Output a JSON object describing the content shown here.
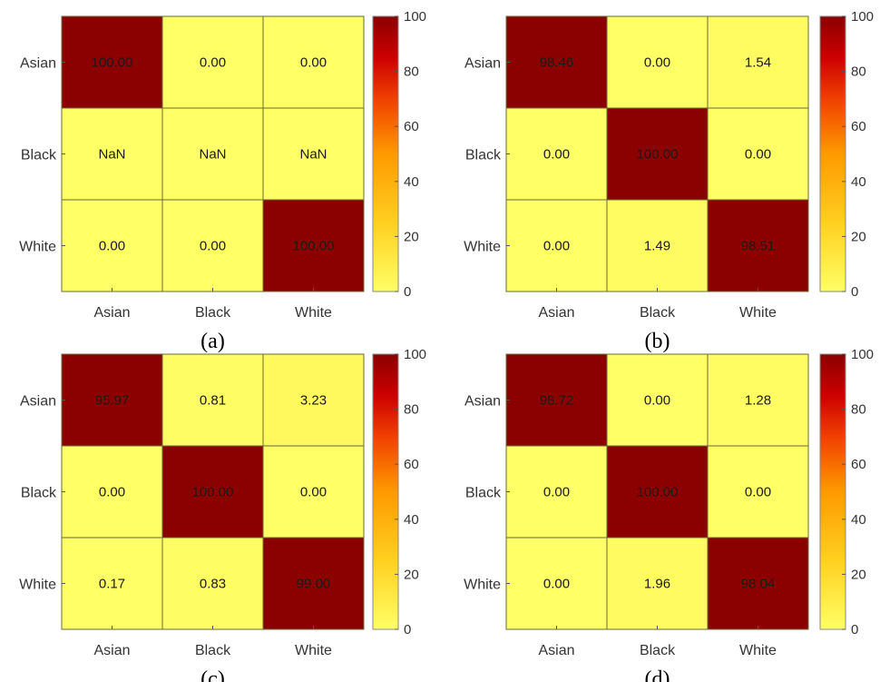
{
  "chart_data": [
    {
      "type": "heatmap",
      "panel_label": "(a)",
      "x_categories": [
        "Asian",
        "Black",
        "White"
      ],
      "y_categories": [
        "Asian",
        "Black",
        "White"
      ],
      "values": [
        [
          100.0,
          0.0,
          0.0
        ],
        [
          null,
          null,
          null
        ],
        [
          0.0,
          0.0,
          100.0
        ]
      ],
      "cell_labels": [
        [
          "100.00",
          "0.00",
          "0.00"
        ],
        [
          "NaN",
          "NaN",
          "NaN"
        ],
        [
          "0.00",
          "0.00",
          "100.00"
        ]
      ],
      "colorbar": {
        "range": [
          0,
          100
        ],
        "ticks": [
          "0",
          "20",
          "40",
          "60",
          "80",
          "100"
        ],
        "colormap": "yellow-to-darkred"
      }
    },
    {
      "type": "heatmap",
      "panel_label": "(b)",
      "x_categories": [
        "Asian",
        "Black",
        "White"
      ],
      "y_categories": [
        "Asian",
        "Black",
        "White"
      ],
      "values": [
        [
          98.46,
          0.0,
          1.54
        ],
        [
          0.0,
          100.0,
          0.0
        ],
        [
          0.0,
          1.49,
          98.51
        ]
      ],
      "cell_labels": [
        [
          "98.46",
          "0.00",
          "1.54"
        ],
        [
          "0.00",
          "100.00",
          "0.00"
        ],
        [
          "0.00",
          "1.49",
          "98.51"
        ]
      ],
      "colorbar": {
        "range": [
          0,
          100
        ],
        "ticks": [
          "0",
          "20",
          "40",
          "60",
          "80",
          "100"
        ],
        "colormap": "yellow-to-darkred"
      }
    },
    {
      "type": "heatmap",
      "panel_label": "(c)",
      "x_categories": [
        "Asian",
        "Black",
        "White"
      ],
      "y_categories": [
        "Asian",
        "Black",
        "White"
      ],
      "values": [
        [
          95.97,
          0.81,
          3.23
        ],
        [
          0.0,
          100.0,
          0.0
        ],
        [
          0.17,
          0.83,
          99.0
        ]
      ],
      "cell_labels": [
        [
          "95.97",
          "0.81",
          "3.23"
        ],
        [
          "0.00",
          "100.00",
          "0.00"
        ],
        [
          "0.17",
          "0.83",
          "99.00"
        ]
      ],
      "colorbar": {
        "range": [
          0,
          100
        ],
        "ticks": [
          "0",
          "20",
          "40",
          "60",
          "80",
          "100"
        ],
        "colormap": "yellow-to-darkred"
      }
    },
    {
      "type": "heatmap",
      "panel_label": "(d)",
      "x_categories": [
        "Asian",
        "Black",
        "White"
      ],
      "y_categories": [
        "Asian",
        "Black",
        "White"
      ],
      "values": [
        [
          98.72,
          0.0,
          1.28
        ],
        [
          0.0,
          100.0,
          0.0
        ],
        [
          0.0,
          1.96,
          98.04
        ]
      ],
      "cell_labels": [
        [
          "98.72",
          "0.00",
          "1.28"
        ],
        [
          "0.00",
          "100.00",
          "0.00"
        ],
        [
          "0.00",
          "1.96",
          "98.04"
        ]
      ],
      "colorbar": {
        "range": [
          0,
          100
        ],
        "ticks": [
          "0",
          "20",
          "40",
          "60",
          "80",
          "100"
        ],
        "colormap": "yellow-to-darkred"
      }
    }
  ],
  "colors": {
    "low": "#ffff66",
    "high": "#8b0000",
    "grid": "#6b6b3a"
  }
}
